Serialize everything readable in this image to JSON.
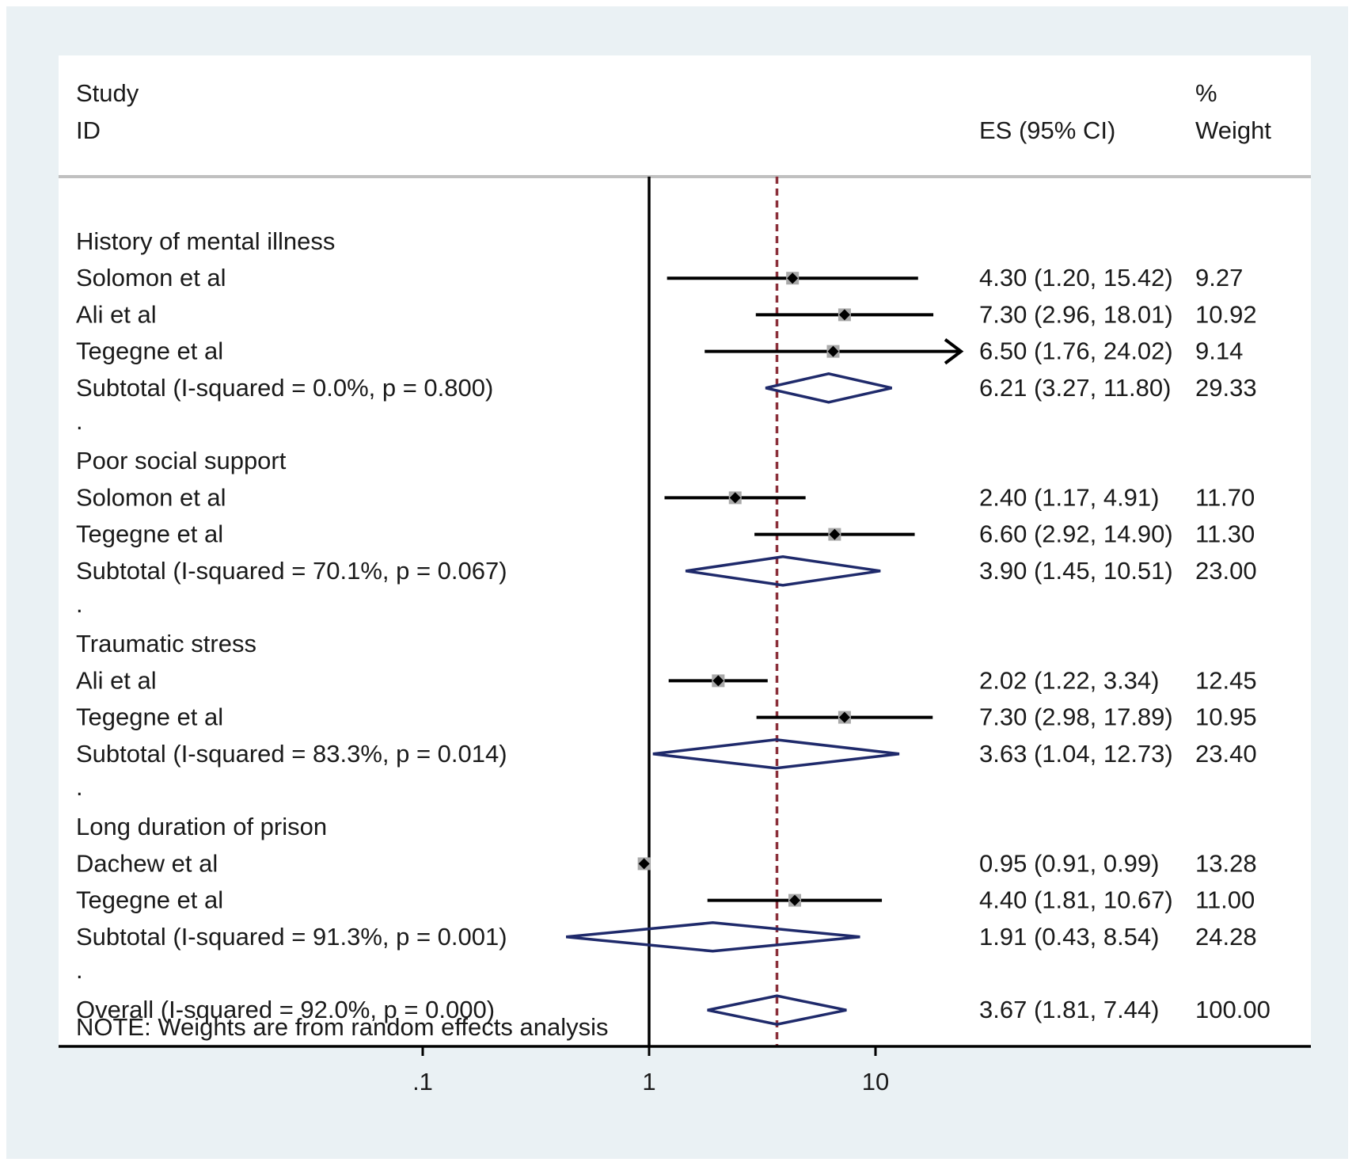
{
  "chart_data": {
    "type": "forest",
    "header": {
      "study_line1": "Study",
      "study_line2": "ID",
      "es_label": "ES (95% CI)",
      "weight_line1": "%",
      "weight_line2": "Weight"
    },
    "axis": {
      "scale": "log",
      "ticks": [
        0.1,
        1,
        10
      ],
      "tick_labels": [
        ".1",
        "1",
        "10"
      ],
      "null_line": 1,
      "overall_line": 3.67
    },
    "rows": [
      {
        "type": "group",
        "label": "History of mental illness"
      },
      {
        "type": "study",
        "label": "Solomon et al",
        "es": 4.3,
        "lo": 1.2,
        "hi": 15.42,
        "ci_text": "4.30 (1.20, 15.42)",
        "weight": "9.27"
      },
      {
        "type": "study",
        "label": "Ali et al",
        "es": 7.3,
        "lo": 2.96,
        "hi": 18.01,
        "ci_text": "7.30 (2.96, 18.01)",
        "weight": "10.92"
      },
      {
        "type": "study",
        "label": "Tegegne et al",
        "es": 6.5,
        "lo": 1.76,
        "hi": 24.02,
        "ci_text": "6.50 (1.76, 24.02)",
        "weight": "9.14",
        "arrow": true
      },
      {
        "type": "subtotal",
        "label": "Subtotal  (I-squared = 0.0%, p = 0.800)",
        "es": 6.21,
        "lo": 3.27,
        "hi": 11.8,
        "ci_text": "6.21 (3.27, 11.80)",
        "weight": "29.33"
      },
      {
        "type": "spacer",
        "label": "."
      },
      {
        "type": "group",
        "label": "Poor social support"
      },
      {
        "type": "study",
        "label": "Solomon et al",
        "es": 2.4,
        "lo": 1.17,
        "hi": 4.91,
        "ci_text": "2.40 (1.17, 4.91)",
        "weight": "11.70"
      },
      {
        "type": "study",
        "label": "Tegegne et al",
        "es": 6.6,
        "lo": 2.92,
        "hi": 14.9,
        "ci_text": "6.60 (2.92, 14.90)",
        "weight": "11.30"
      },
      {
        "type": "subtotal",
        "label": "Subtotal  (I-squared = 70.1%, p = 0.067)",
        "es": 3.9,
        "lo": 1.45,
        "hi": 10.51,
        "ci_text": "3.90 (1.45, 10.51)",
        "weight": "23.00"
      },
      {
        "type": "spacer",
        "label": "."
      },
      {
        "type": "group",
        "label": "Traumatic stress"
      },
      {
        "type": "study",
        "label": "Ali et al",
        "es": 2.02,
        "lo": 1.22,
        "hi": 3.34,
        "ci_text": "2.02 (1.22, 3.34)",
        "weight": "12.45"
      },
      {
        "type": "study",
        "label": "Tegegne et al",
        "es": 7.3,
        "lo": 2.98,
        "hi": 17.89,
        "ci_text": "7.30 (2.98, 17.89)",
        "weight": "10.95"
      },
      {
        "type": "subtotal",
        "label": "Subtotal  (I-squared = 83.3%, p = 0.014)",
        "es": 3.63,
        "lo": 1.04,
        "hi": 12.73,
        "ci_text": "3.63 (1.04, 12.73)",
        "weight": "23.40"
      },
      {
        "type": "spacer",
        "label": "."
      },
      {
        "type": "group",
        "label": "Long duration of prison"
      },
      {
        "type": "study",
        "label": "Dachew et al",
        "es": 0.95,
        "lo": 0.91,
        "hi": 0.99,
        "ci_text": "0.95 (0.91, 0.99)",
        "weight": "13.28"
      },
      {
        "type": "study",
        "label": "Tegegne et al",
        "es": 4.4,
        "lo": 1.81,
        "hi": 10.67,
        "ci_text": "4.40 (1.81, 10.67)",
        "weight": "11.00"
      },
      {
        "type": "subtotal",
        "label": "Subtotal  (I-squared = 91.3%, p = 0.001)",
        "es": 1.91,
        "lo": 0.43,
        "hi": 8.54,
        "ci_text": "1.91 (0.43, 8.54)",
        "weight": "24.28"
      },
      {
        "type": "spacer",
        "label": "."
      },
      {
        "type": "overall",
        "label": "Overall  (I-squared = 92.0%, p = 0.000)",
        "es": 3.67,
        "lo": 1.81,
        "hi": 7.44,
        "ci_text": "3.67 (1.81, 7.44)",
        "weight": "100.00"
      }
    ],
    "note": "NOTE: Weights are from random effects analysis"
  },
  "colors": {
    "diamond": "#1f2a6b",
    "overall_line": "#8b2f3a",
    "box": "#a9a9a9",
    "line": "#000000"
  }
}
